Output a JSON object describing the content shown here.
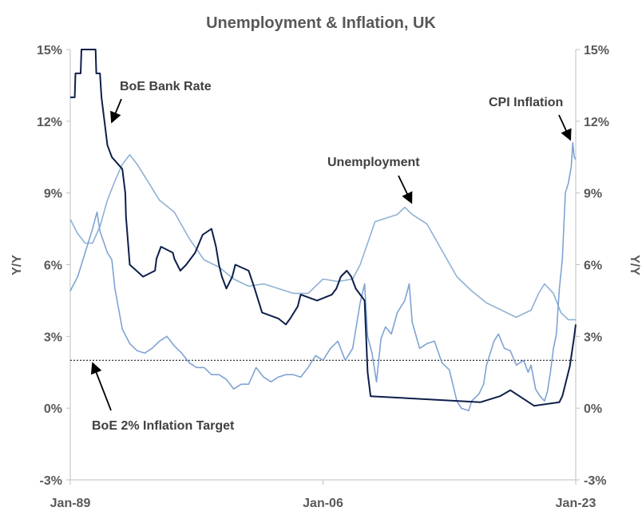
{
  "chart_data": {
    "type": "line",
    "title": "Unemployment & Inflation, UK",
    "ylabel_left": "Y/Y",
    "ylabel_right": "Y/Y",
    "ylim": [
      -3,
      15
    ],
    "yticks": [
      15,
      12,
      9,
      6,
      3,
      0,
      -3
    ],
    "ytick_labels": [
      "15%",
      "12%",
      "9%",
      "6%",
      "3%",
      "0%",
      "-3%"
    ],
    "xlim": [
      1989.0,
      2023.0
    ],
    "xticks": [
      {
        "x": 1989.0,
        "label": "Jan-89"
      },
      {
        "x": 2006.0,
        "label": "Jan-06"
      },
      {
        "x": 2023.0,
        "label": "Jan-23"
      }
    ],
    "reference_line": {
      "y": 2,
      "label": "BoE 2% Inflation Target"
    },
    "annotations": [
      {
        "text": "BoE Bank Rate",
        "series": "BoE Bank Rate"
      },
      {
        "text": "CPI Inflation",
        "series": "CPI Inflation"
      },
      {
        "text": "Unemployment",
        "series": "Unemployment"
      },
      {
        "text": "BoE 2% Inflation Target",
        "series": "target"
      }
    ],
    "series": [
      {
        "name": "BoE Bank Rate",
        "color": "#0d1f4a",
        "points": [
          [
            1989.0,
            13.0
          ],
          [
            1989.3,
            13.0
          ],
          [
            1989.35,
            14.0
          ],
          [
            1989.7,
            14.0
          ],
          [
            1989.75,
            15.0
          ],
          [
            1990.7,
            15.0
          ],
          [
            1990.75,
            14.0
          ],
          [
            1991.0,
            14.0
          ],
          [
            1991.1,
            13.0
          ],
          [
            1991.3,
            12.0
          ],
          [
            1991.5,
            11.0
          ],
          [
            1991.8,
            10.5
          ],
          [
            1992.5,
            10.0
          ],
          [
            1992.7,
            9.0
          ],
          [
            1992.75,
            8.0
          ],
          [
            1993.0,
            6.0
          ],
          [
            1993.9,
            5.5
          ],
          [
            1994.7,
            5.75
          ],
          [
            1994.8,
            6.25
          ],
          [
            1995.1,
            6.75
          ],
          [
            1995.9,
            6.5
          ],
          [
            1996.0,
            6.25
          ],
          [
            1996.4,
            5.75
          ],
          [
            1996.8,
            6.0
          ],
          [
            1997.4,
            6.5
          ],
          [
            1997.9,
            7.25
          ],
          [
            1998.5,
            7.5
          ],
          [
            1998.8,
            6.75
          ],
          [
            1999.0,
            6.0
          ],
          [
            1999.2,
            5.5
          ],
          [
            1999.5,
            5.0
          ],
          [
            1999.9,
            5.5
          ],
          [
            2000.1,
            6.0
          ],
          [
            2001.0,
            5.75
          ],
          [
            2001.4,
            5.0
          ],
          [
            2001.9,
            4.0
          ],
          [
            2003.0,
            3.75
          ],
          [
            2003.5,
            3.5
          ],
          [
            2003.8,
            3.75
          ],
          [
            2004.3,
            4.25
          ],
          [
            2004.5,
            4.75
          ],
          [
            2005.6,
            4.5
          ],
          [
            2006.6,
            4.75
          ],
          [
            2006.9,
            5.0
          ],
          [
            2007.2,
            5.5
          ],
          [
            2007.6,
            5.75
          ],
          [
            2007.9,
            5.5
          ],
          [
            2008.2,
            5.0
          ],
          [
            2008.8,
            4.5
          ],
          [
            2008.9,
            3.0
          ],
          [
            2009.0,
            1.5
          ],
          [
            2009.2,
            0.5
          ],
          [
            2016.6,
            0.25
          ],
          [
            2017.9,
            0.5
          ],
          [
            2018.6,
            0.75
          ],
          [
            2020.2,
            0.1
          ],
          [
            2021.9,
            0.25
          ],
          [
            2022.1,
            0.5
          ],
          [
            2022.3,
            1.0
          ],
          [
            2022.6,
            1.75
          ],
          [
            2022.9,
            3.0
          ],
          [
            2023.0,
            3.5
          ]
        ]
      },
      {
        "name": "Unemployment",
        "color": "#8fb1d4",
        "points": [
          [
            1989.0,
            7.9
          ],
          [
            1989.5,
            7.3
          ],
          [
            1990.0,
            6.9
          ],
          [
            1990.5,
            6.9
          ],
          [
            1991.0,
            7.6
          ],
          [
            1991.5,
            8.7
          ],
          [
            1992.0,
            9.5
          ],
          [
            1992.5,
            10.2
          ],
          [
            1993.0,
            10.6
          ],
          [
            1993.5,
            10.2
          ],
          [
            1994.0,
            9.7
          ],
          [
            1995.0,
            8.7
          ],
          [
            1996.0,
            8.2
          ],
          [
            1997.0,
            7.1
          ],
          [
            1998.0,
            6.2
          ],
          [
            1999.0,
            5.9
          ],
          [
            2000.0,
            5.4
          ],
          [
            2001.0,
            5.1
          ],
          [
            2002.0,
            5.2
          ],
          [
            2003.0,
            5.0
          ],
          [
            2004.0,
            4.8
          ],
          [
            2005.0,
            4.8
          ],
          [
            2006.0,
            5.4
          ],
          [
            2007.0,
            5.3
          ],
          [
            2008.0,
            5.4
          ],
          [
            2008.5,
            6.0
          ],
          [
            2009.0,
            6.9
          ],
          [
            2009.5,
            7.8
          ],
          [
            2010.0,
            7.9
          ],
          [
            2011.0,
            8.1
          ],
          [
            2011.5,
            8.4
          ],
          [
            2012.0,
            8.1
          ],
          [
            2013.0,
            7.7
          ],
          [
            2014.0,
            6.6
          ],
          [
            2015.0,
            5.5
          ],
          [
            2016.0,
            4.9
          ],
          [
            2017.0,
            4.4
          ],
          [
            2018.0,
            4.1
          ],
          [
            2019.0,
            3.8
          ],
          [
            2020.0,
            4.1
          ],
          [
            2020.5,
            4.8
          ],
          [
            2020.9,
            5.2
          ],
          [
            2021.5,
            4.8
          ],
          [
            2022.0,
            4.0
          ],
          [
            2022.5,
            3.7
          ],
          [
            2023.0,
            3.7
          ]
        ]
      },
      {
        "name": "CPI Inflation",
        "color": "#7fa3d3",
        "points": [
          [
            1989.0,
            4.9
          ],
          [
            1989.5,
            5.5
          ],
          [
            1990.0,
            6.5
          ],
          [
            1990.5,
            7.5
          ],
          [
            1990.8,
            8.2
          ],
          [
            1991.0,
            7.4
          ],
          [
            1991.5,
            6.5
          ],
          [
            1991.8,
            6.2
          ],
          [
            1992.0,
            5.0
          ],
          [
            1992.3,
            4.0
          ],
          [
            1992.5,
            3.3
          ],
          [
            1993.0,
            2.7
          ],
          [
            1993.5,
            2.4
          ],
          [
            1994.0,
            2.3
          ],
          [
            1994.5,
            2.5
          ],
          [
            1995.0,
            2.8
          ],
          [
            1995.5,
            3.0
          ],
          [
            1996.0,
            2.6
          ],
          [
            1996.5,
            2.3
          ],
          [
            1997.0,
            1.9
          ],
          [
            1997.5,
            1.7
          ],
          [
            1998.0,
            1.7
          ],
          [
            1998.5,
            1.4
          ],
          [
            1999.0,
            1.4
          ],
          [
            1999.5,
            1.2
          ],
          [
            2000.0,
            0.8
          ],
          [
            2000.5,
            1.0
          ],
          [
            2001.0,
            1.0
          ],
          [
            2001.5,
            1.7
          ],
          [
            2002.0,
            1.3
          ],
          [
            2002.5,
            1.1
          ],
          [
            2003.0,
            1.3
          ],
          [
            2003.5,
            1.4
          ],
          [
            2004.0,
            1.4
          ],
          [
            2004.5,
            1.3
          ],
          [
            2005.0,
            1.7
          ],
          [
            2005.5,
            2.2
          ],
          [
            2006.0,
            2.0
          ],
          [
            2006.5,
            2.5
          ],
          [
            2007.0,
            2.8
          ],
          [
            2007.5,
            2.0
          ],
          [
            2008.0,
            2.5
          ],
          [
            2008.5,
            4.4
          ],
          [
            2008.8,
            5.2
          ],
          [
            2009.0,
            3.0
          ],
          [
            2009.3,
            2.3
          ],
          [
            2009.6,
            1.1
          ],
          [
            2009.9,
            2.9
          ],
          [
            2010.2,
            3.4
          ],
          [
            2010.6,
            3.1
          ],
          [
            2011.0,
            4.0
          ],
          [
            2011.5,
            4.5
          ],
          [
            2011.8,
            5.2
          ],
          [
            2012.0,
            3.6
          ],
          [
            2012.5,
            2.5
          ],
          [
            2013.0,
            2.7
          ],
          [
            2013.5,
            2.8
          ],
          [
            2014.0,
            1.9
          ],
          [
            2014.5,
            1.6
          ],
          [
            2015.0,
            0.3
          ],
          [
            2015.3,
            0.0
          ],
          [
            2015.8,
            -0.1
          ],
          [
            2016.0,
            0.3
          ],
          [
            2016.5,
            0.6
          ],
          [
            2016.8,
            1.0
          ],
          [
            2017.0,
            1.8
          ],
          [
            2017.5,
            2.8
          ],
          [
            2017.8,
            3.1
          ],
          [
            2018.2,
            2.5
          ],
          [
            2018.6,
            2.4
          ],
          [
            2019.0,
            1.8
          ],
          [
            2019.5,
            2.0
          ],
          [
            2019.8,
            1.5
          ],
          [
            2020.0,
            1.8
          ],
          [
            2020.3,
            0.8
          ],
          [
            2020.6,
            0.5
          ],
          [
            2020.9,
            0.3
          ],
          [
            2021.1,
            0.7
          ],
          [
            2021.3,
            1.5
          ],
          [
            2021.5,
            2.5
          ],
          [
            2021.7,
            3.1
          ],
          [
            2021.9,
            5.0
          ],
          [
            2022.1,
            6.2
          ],
          [
            2022.3,
            9.0
          ],
          [
            2022.5,
            9.4
          ],
          [
            2022.7,
            10.1
          ],
          [
            2022.8,
            11.1
          ],
          [
            2022.9,
            10.5
          ],
          [
            2023.0,
            10.4
          ]
        ]
      }
    ]
  }
}
